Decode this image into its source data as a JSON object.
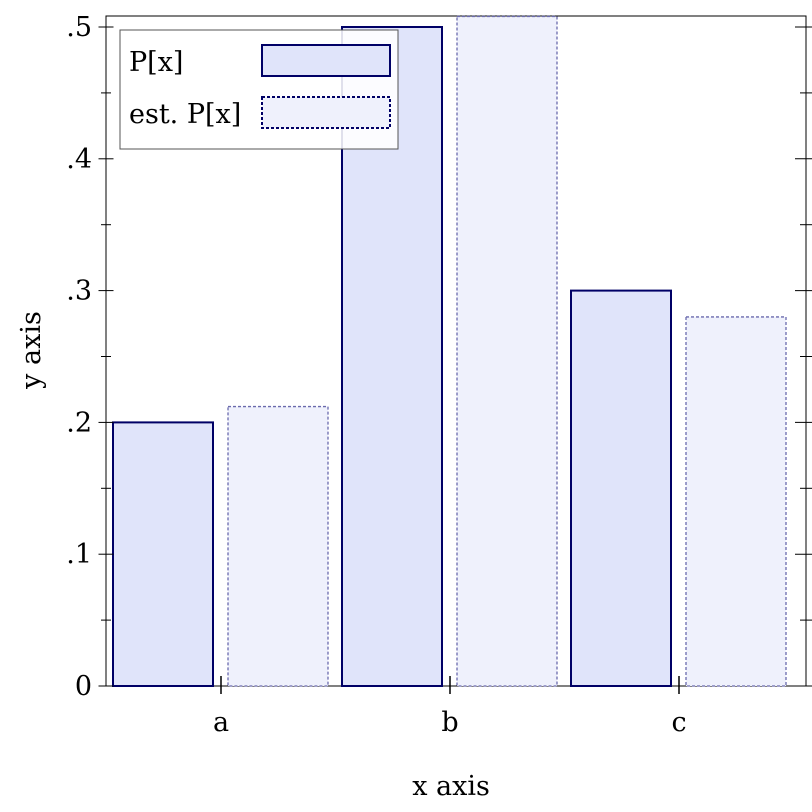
{
  "chart_data": {
    "type": "bar",
    "title": "",
    "xlabel": "x axis",
    "ylabel": "y axis",
    "categories": [
      "a",
      "b",
      "c"
    ],
    "series": [
      {
        "name": "P[x]",
        "values": [
          0.2,
          0.5,
          0.3
        ],
        "style": "solid",
        "fill": "#e0e4fa",
        "stroke": "#000066"
      },
      {
        "name": "est. P[x]",
        "values": [
          0.212,
          0.508,
          0.28
        ],
        "style": "dashed",
        "fill": "#eff1fc",
        "stroke": "#6a6aad"
      }
    ],
    "ylim": [
      0,
      0.5
    ],
    "y_ticks": [
      {
        "value": 0,
        "label": "0"
      },
      {
        "value": 0.1,
        "label": ".1"
      },
      {
        "value": 0.2,
        "label": ".2"
      },
      {
        "value": 0.3,
        "label": ".3"
      },
      {
        "value": 0.4,
        "label": ".4"
      },
      {
        "value": 0.5,
        "label": ".5"
      }
    ],
    "grid": false,
    "legend_position": "top-left",
    "legend": [
      {
        "label": "P[x]",
        "style": "solid"
      },
      {
        "label": "est. P[x]",
        "style": "dashed"
      }
    ]
  }
}
